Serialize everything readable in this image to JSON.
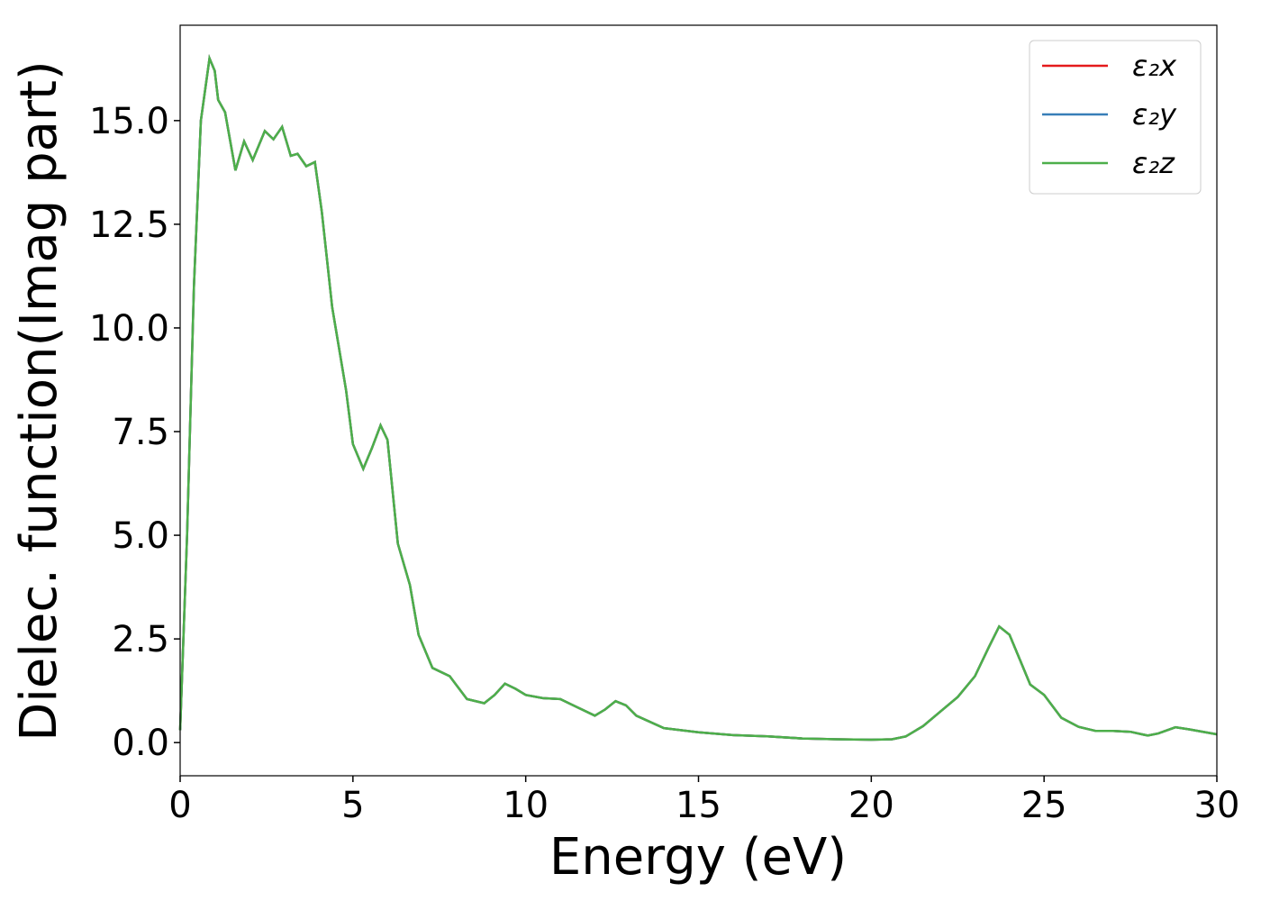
{
  "chart_data": {
    "type": "line",
    "xlabel": "Energy (eV)",
    "ylabel": "Dielec. function(Imag part)",
    "x": [
      0,
      0.2,
      0.4,
      0.6,
      0.85,
      1.0,
      1.1,
      1.3,
      1.6,
      1.85,
      2.1,
      2.45,
      2.7,
      2.95,
      3.2,
      3.4,
      3.65,
      3.9,
      4.1,
      4.4,
      4.8,
      5.0,
      5.3,
      5.55,
      5.8,
      6.0,
      6.3,
      6.65,
      6.9,
      7.3,
      7.8,
      8.3,
      8.8,
      9.1,
      9.4,
      9.7,
      10.0,
      10.5,
      11.0,
      11.5,
      12.0,
      12.3,
      12.6,
      12.9,
      13.2,
      14.0,
      15,
      16,
      17,
      18,
      19,
      20,
      20.6,
      21,
      21.5,
      22,
      22.5,
      23,
      23.4,
      23.7,
      24.0,
      24.3,
      24.6,
      25,
      25.5,
      26,
      26.5,
      27,
      27.5,
      28,
      28.3,
      28.8,
      29.2,
      30
    ],
    "series": [
      {
        "name": "ε₂x",
        "color": "#e41a1c",
        "values": [
          0.3,
          5,
          11,
          15,
          16.5,
          16.2,
          15.5,
          15.2,
          13.8,
          14.5,
          14.05,
          14.75,
          14.55,
          14.85,
          14.15,
          14.2,
          13.9,
          14.0,
          12.8,
          10.5,
          8.5,
          7.2,
          6.6,
          7.1,
          7.65,
          7.3,
          4.8,
          3.8,
          2.6,
          1.8,
          1.6,
          1.05,
          0.95,
          1.15,
          1.42,
          1.3,
          1.15,
          1.07,
          1.05,
          0.85,
          0.65,
          0.8,
          1.0,
          0.9,
          0.65,
          0.35,
          0.25,
          0.18,
          0.15,
          0.1,
          0.08,
          0.07,
          0.08,
          0.15,
          0.4,
          0.75,
          1.1,
          1.6,
          2.3,
          2.8,
          2.6,
          2.0,
          1.4,
          1.15,
          0.6,
          0.38,
          0.28,
          0.28,
          0.26,
          0.17,
          0.22,
          0.37,
          0.32,
          0.2
        ]
      },
      {
        "name": "ε₂y",
        "color": "#377eb8",
        "values": [
          0.3,
          5,
          11,
          15,
          16.5,
          16.2,
          15.5,
          15.2,
          13.8,
          14.5,
          14.05,
          14.75,
          14.55,
          14.85,
          14.15,
          14.2,
          13.9,
          14.0,
          12.8,
          10.5,
          8.5,
          7.2,
          6.6,
          7.1,
          7.65,
          7.3,
          4.8,
          3.8,
          2.6,
          1.8,
          1.6,
          1.05,
          0.95,
          1.15,
          1.42,
          1.3,
          1.15,
          1.07,
          1.05,
          0.85,
          0.65,
          0.8,
          1.0,
          0.9,
          0.65,
          0.35,
          0.25,
          0.18,
          0.15,
          0.1,
          0.08,
          0.07,
          0.08,
          0.15,
          0.4,
          0.75,
          1.1,
          1.6,
          2.3,
          2.8,
          2.6,
          2.0,
          1.4,
          1.15,
          0.6,
          0.38,
          0.28,
          0.28,
          0.26,
          0.17,
          0.22,
          0.37,
          0.32,
          0.2
        ]
      },
      {
        "name": "ε₂z",
        "color": "#4daf4a",
        "values": [
          0.3,
          5,
          11,
          15,
          16.5,
          16.2,
          15.5,
          15.2,
          13.8,
          14.5,
          14.05,
          14.75,
          14.55,
          14.85,
          14.15,
          14.2,
          13.9,
          14.0,
          12.8,
          10.5,
          8.5,
          7.2,
          6.6,
          7.1,
          7.65,
          7.3,
          4.8,
          3.8,
          2.6,
          1.8,
          1.6,
          1.05,
          0.95,
          1.15,
          1.42,
          1.3,
          1.15,
          1.07,
          1.05,
          0.85,
          0.65,
          0.8,
          1.0,
          0.9,
          0.65,
          0.35,
          0.25,
          0.18,
          0.15,
          0.1,
          0.08,
          0.07,
          0.08,
          0.15,
          0.4,
          0.75,
          1.1,
          1.6,
          2.3,
          2.8,
          2.6,
          2.0,
          1.4,
          1.15,
          0.6,
          0.38,
          0.28,
          0.28,
          0.26,
          0.17,
          0.22,
          0.37,
          0.32,
          0.2
        ]
      }
    ],
    "xlim": [
      0,
      30
    ],
    "xticks": [
      0,
      5,
      10,
      15,
      20,
      25,
      30
    ],
    "ylim": [
      -0.8,
      17.3
    ],
    "yticks": [
      {
        "value": 0,
        "label": "0.0"
      },
      2.5,
      {
        "value": 5,
        "label": "5.0"
      },
      7.5,
      {
        "value": 10,
        "label": "10.0"
      },
      12.5,
      {
        "value": 15,
        "label": "15.0"
      }
    ],
    "legend": "upper right"
  }
}
